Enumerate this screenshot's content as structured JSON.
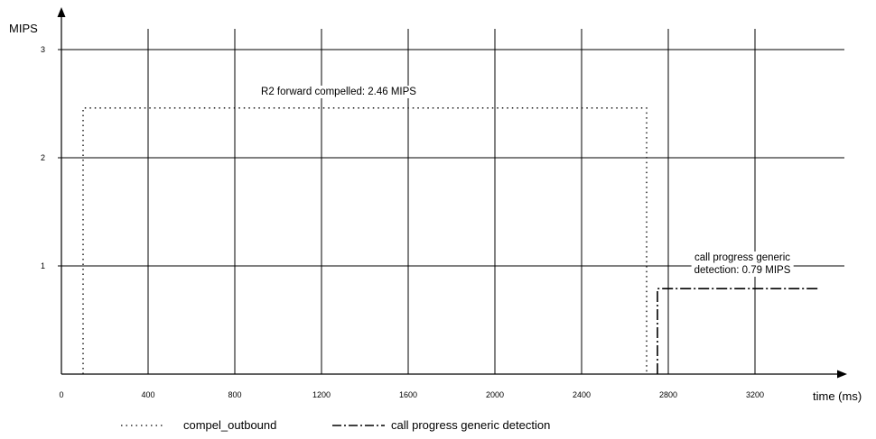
{
  "chart_data": {
    "type": "line",
    "title": "",
    "xlabel": "time (ms)",
    "ylabel": "MIPS",
    "xlim": [
      0,
      3600
    ],
    "ylim": [
      0,
      3
    ],
    "x_ticks": [
      0,
      400,
      800,
      1200,
      1600,
      2000,
      2400,
      2800,
      3200
    ],
    "y_ticks": [
      1,
      2,
      3
    ],
    "grid": true,
    "legend_position": "bottom",
    "series": [
      {
        "name": "compel_outbound",
        "style": "dotted",
        "points": [
          [
            100,
            0
          ],
          [
            100,
            2.46
          ],
          [
            2700,
            2.46
          ],
          [
            2700,
            0
          ]
        ]
      },
      {
        "name": "call progress generic detection",
        "style": "dash-dot",
        "points": [
          [
            2750,
            0
          ],
          [
            2750,
            0.79
          ],
          [
            3500,
            0.79
          ]
        ]
      }
    ],
    "annotations": [
      {
        "text": "R2 forward compelled: 2.46 MIPS",
        "x": 1700,
        "y": 2.6
      },
      {
        "lines": [
          "call progress generic",
          "detection: 0.79 MIPS"
        ],
        "x": 3180,
        "y": 0.9
      }
    ]
  }
}
